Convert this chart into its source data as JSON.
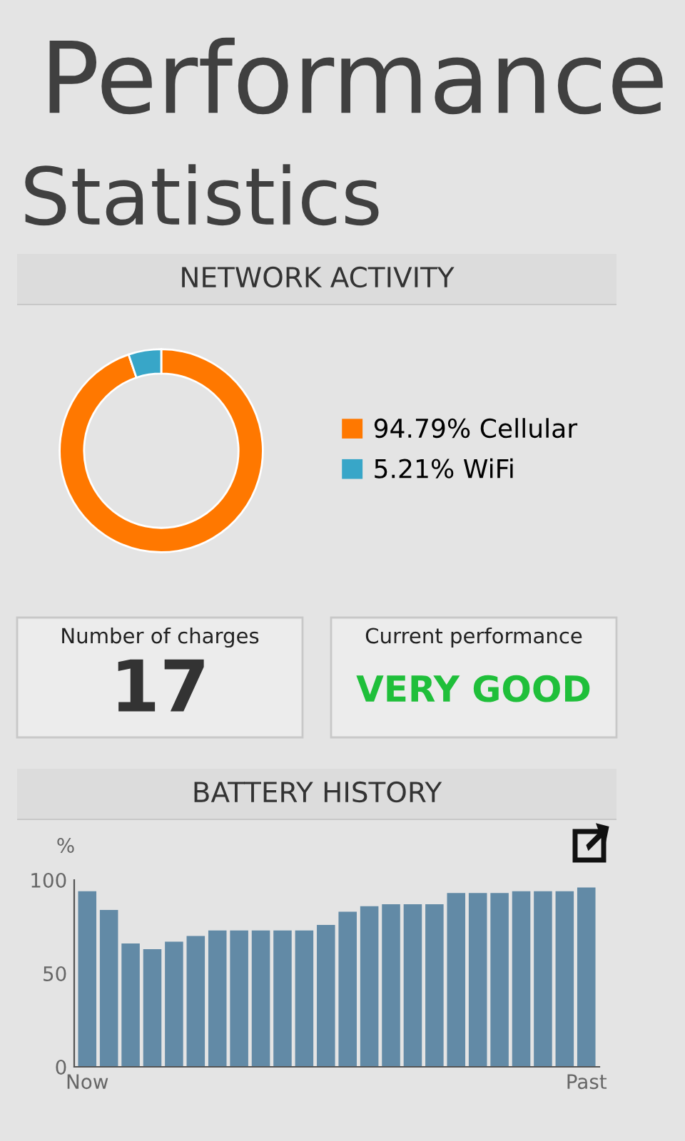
{
  "chart_data": [
    {
      "type": "donut",
      "title": "NETWORK ACTIVITY",
      "annotations": [
        "Performance",
        "Statistics"
      ],
      "categories": [
        "Cellular",
        "WiFi"
      ],
      "values": [
        94.79,
        5.21
      ],
      "value_labels": [
        "94.79%",
        "5.21%"
      ],
      "colors": [
        "#ff7800",
        "#38a6c8"
      ],
      "legend": "right"
    },
    {
      "type": "other",
      "annotations": [
        "Number of charges",
        "17",
        "Current performance",
        "VERY GOOD"
      ]
    },
    {
      "type": "bar",
      "title": "BATTERY HISTORY",
      "ylabel": "%",
      "categories": [
        "Now",
        null,
        null,
        null,
        null,
        null,
        null,
        null,
        null,
        null,
        null,
        null,
        null,
        null,
        null,
        null,
        null,
        null,
        null,
        null,
        null,
        null,
        null,
        "Past"
      ],
      "values": [
        94,
        84,
        66,
        63,
        67,
        70,
        73,
        73,
        73,
        73,
        73,
        76,
        83,
        86,
        87,
        87,
        87,
        93,
        93,
        93,
        94,
        94,
        94,
        96
      ],
      "color": "#628aa6",
      "ylim": [
        0,
        100
      ],
      "yticks": [
        0,
        50,
        100
      ],
      "grid": false
    }
  ]
}
